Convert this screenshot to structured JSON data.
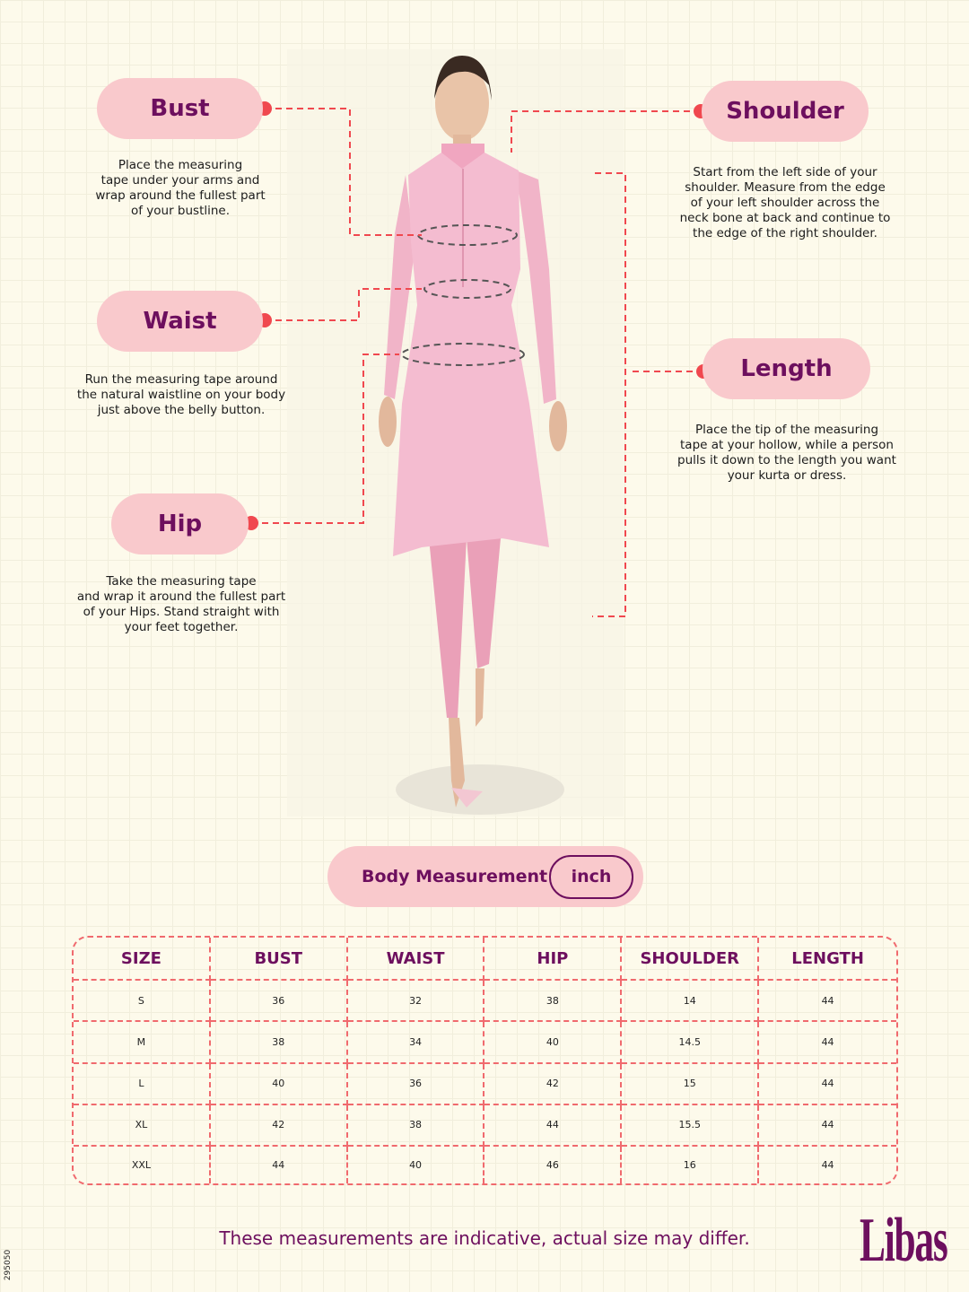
{
  "labels": {
    "bust": {
      "title": "Bust",
      "desc": [
        "Place the measuring",
        "tape under your arms and",
        "wrap around the fullest part",
        "of your bustline."
      ]
    },
    "waist": {
      "title": "Waist",
      "desc": [
        "Run the measuring tape around",
        "the natural waistline on your body",
        "just above the belly button."
      ]
    },
    "hip": {
      "title": "Hip",
      "desc": [
        "Take the measuring tape",
        "and wrap it around the fullest part",
        "of your Hips. Stand straight with",
        "your feet together."
      ]
    },
    "shoulder": {
      "title": "Shoulder",
      "desc": [
        "Start from the left side of your",
        "shoulder. Measure from the edge",
        "of your left shoulder across the",
        "neck bone at back and continue to",
        "the edge of the right shoulder."
      ]
    },
    "length": {
      "title": "Length",
      "desc": [
        "Place the tip of the measuring",
        "tape at your hollow, while a person",
        "pulls it down to the length you want",
        "your kurta or dress."
      ]
    }
  },
  "body_measurement": {
    "label": "Body Measurement",
    "unit": "inch"
  },
  "table": {
    "headers": [
      "SIZE",
      "BUST",
      "WAIST",
      "HIP",
      "SHOULDER",
      "LENGTH"
    ],
    "rows": [
      [
        "S",
        "36",
        "32",
        "38",
        "14",
        "44"
      ],
      [
        "M",
        "38",
        "34",
        "40",
        "14.5",
        "44"
      ],
      [
        "L",
        "40",
        "36",
        "42",
        "15",
        "44"
      ],
      [
        "XL",
        "42",
        "38",
        "44",
        "15.5",
        "44"
      ],
      [
        "XXL",
        "44",
        "40",
        "46",
        "16",
        "44"
      ]
    ]
  },
  "footer": "These measurements are indicative, actual size may differ.",
  "logo": "Libas",
  "code": "295050",
  "colors": {
    "accent": "#6d0f5e",
    "pill": "#f9c9cc",
    "dash": "#f0484f",
    "background": "#fdfaeb"
  }
}
